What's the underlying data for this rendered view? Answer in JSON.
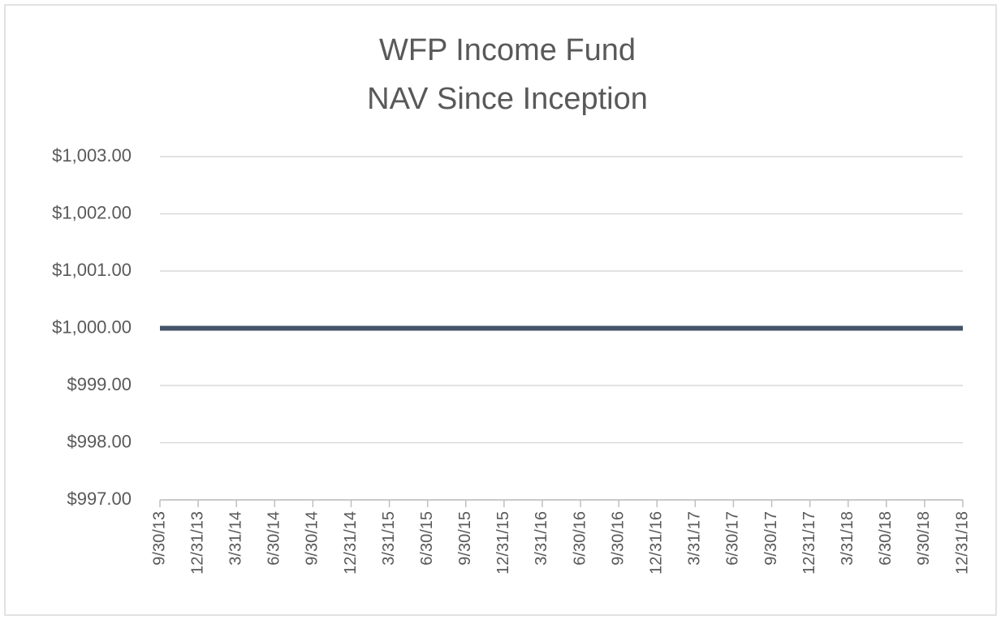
{
  "chart_data": {
    "type": "line",
    "title": "WFP Income Fund",
    "subtitle": "NAV Since Inception",
    "categories": [
      "9/30/13",
      "12/31/13",
      "3/31/14",
      "6/30/14",
      "9/30/14",
      "12/31/14",
      "3/31/15",
      "6/30/15",
      "9/30/15",
      "12/31/15",
      "3/31/16",
      "6/30/16",
      "9/30/16",
      "12/31/16",
      "3/31/17",
      "6/30/17",
      "9/30/17",
      "12/31/17",
      "3/31/18",
      "6/30/18",
      "9/30/18",
      "12/31/18"
    ],
    "series": [
      {
        "color": "#44546a",
        "values": [
          1000,
          1000,
          1000,
          1000,
          1000,
          1000,
          1000,
          1000,
          1000,
          1000,
          1000,
          1000,
          1000,
          1000,
          1000,
          1000,
          1000,
          1000,
          1000,
          1000,
          1000,
          1000
        ]
      }
    ],
    "ylim": [
      997,
      1003
    ],
    "yticks": [
      {
        "value": 997,
        "label": "$997.00"
      },
      {
        "value": 998,
        "label": "$998.00"
      },
      {
        "value": 999,
        "label": "$999.00"
      },
      {
        "value": 1000,
        "label": "$1,000.00"
      },
      {
        "value": 1001,
        "label": "$1,001.00"
      },
      {
        "value": 1002,
        "label": "$1,002.00"
      },
      {
        "value": 1003,
        "label": "$1,003.00"
      }
    ],
    "grid": true
  }
}
